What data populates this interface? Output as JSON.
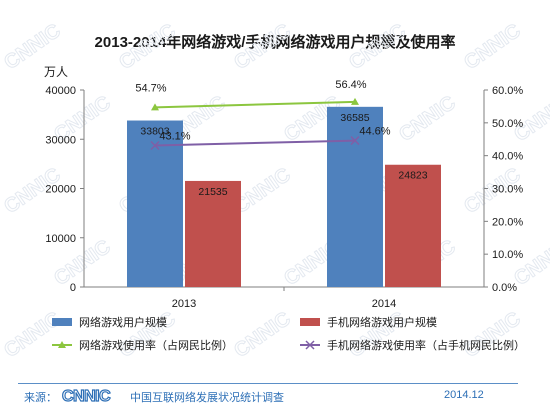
{
  "chart_data": {
    "type": "bar",
    "title": "2013-2014年网络游戏/手机网络游戏用户规模及使用率",
    "y_unit": "万人",
    "categories": [
      "2013",
      "2014"
    ],
    "ylim": [
      0,
      40000
    ],
    "yticks": [
      "0",
      "10000",
      "20000",
      "30000",
      "40000"
    ],
    "y2lim": [
      0,
      60
    ],
    "y2ticks": [
      "0.0%",
      "10.0%",
      "20.0%",
      "30.0%",
      "40.0%",
      "50.0%",
      "60.0%"
    ],
    "bar_series": [
      {
        "name": "网络游戏用户规模",
        "values": [
          33803,
          36585
        ],
        "labels": [
          "33803",
          "36585"
        ],
        "color": "#4f81bd"
      },
      {
        "name": "手机网络游戏用户规模",
        "values": [
          21535,
          24823
        ],
        "labels": [
          "21535",
          "24823"
        ],
        "color": "#c0504d"
      }
    ],
    "line_series": [
      {
        "name": "网络游戏使用率（占网民比例）",
        "values": [
          54.7,
          56.4
        ],
        "labels": [
          "54.7%",
          "56.4%"
        ],
        "color": "#8cc63f",
        "marker": "triangle"
      },
      {
        "name": "手机网络游戏使用率（占手机网民比例）",
        "values": [
          43.1,
          44.6
        ],
        "labels": [
          "43.1%",
          "44.6%"
        ],
        "color": "#7f5fa6",
        "marker": "x"
      }
    ],
    "grid": false,
    "legend_position": "bottom"
  },
  "footer": {
    "source_label": "来源：",
    "org_name": "中国互联网络发展状况统计调查",
    "date": "2014.12",
    "logo_text": "CNNIC"
  },
  "watermark": "CNNIC"
}
